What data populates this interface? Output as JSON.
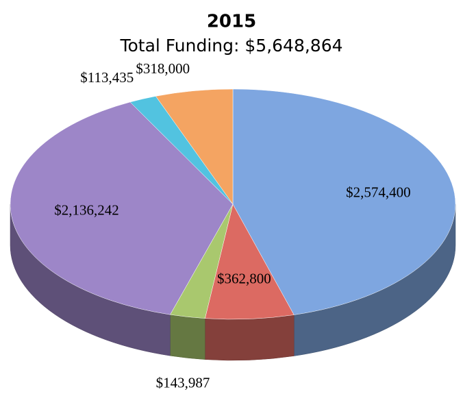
{
  "chart_data": {
    "type": "pie",
    "title": "2015",
    "subtitle": "Total Funding: $5,648,864",
    "values": [
      2574400,
      362800,
      143987,
      2136242,
      113435,
      318000
    ],
    "value_labels": [
      "$2,574,400",
      "$362,800",
      "$143,987",
      "$2,136,242",
      "$113,435",
      "$318,000"
    ],
    "colors": [
      "#7ea6e0",
      "#dc6a62",
      "#a9c86e",
      "#9d86c8",
      "#52c3e0",
      "#f4a462"
    ]
  }
}
